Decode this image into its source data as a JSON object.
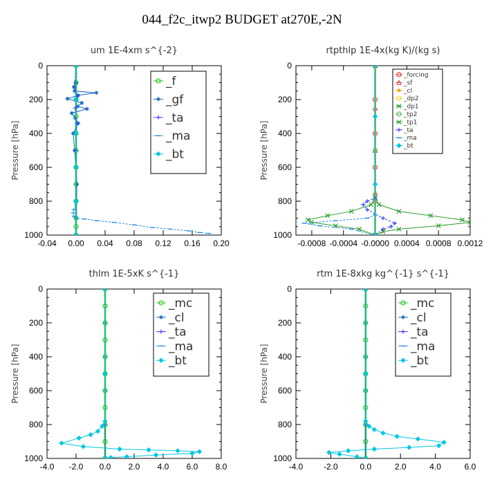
{
  "title": "044_f2c_itwp2  BUDGET at270E,-2N",
  "chart_data": [
    {
      "type": "line",
      "title": "um   1E-4xm s^{-2}",
      "ylabel": "Pressure [hPa]",
      "xlim": [
        -0.04,
        0.2
      ],
      "ylim": [
        1000,
        0
      ],
      "xticks": [
        "-0.04",
        "0.00",
        "0.04",
        "0.08",
        "0.12",
        "0.16",
        "0.20"
      ],
      "yticks": [
        "0",
        "200",
        "400",
        "600",
        "800",
        "1000"
      ],
      "legend_size": "large",
      "series": [
        {
          "name": "_f",
          "color": "#22c522",
          "marker": "circle",
          "x": [
            0,
            0,
            0,
            0,
            0,
            0,
            0,
            0,
            0,
            0,
            0,
            0
          ],
          "y": [
            0,
            100,
            200,
            300,
            400,
            500,
            600,
            700,
            800,
            900,
            950,
            1000
          ]
        },
        {
          "name": "_gf",
          "color": "#1565c0",
          "marker": "star",
          "x": [
            0,
            -0.003,
            -0.002,
            0.028,
            0.003,
            -0.012,
            0.008,
            0.002,
            0.015,
            -0.006,
            -0.001,
            0.003,
            -0.004,
            -0.002,
            0,
            0.001,
            0
          ],
          "y": [
            100,
            125,
            150,
            160,
            175,
            195,
            220,
            240,
            255,
            280,
            310,
            340,
            400,
            500,
            600,
            700,
            1000
          ]
        },
        {
          "name": "_ta",
          "color": "#3b3bff",
          "marker": "plus",
          "x": [
            0,
            -0.002,
            0.002,
            -0.001,
            0.001,
            0,
            0
          ],
          "y": [
            0,
            130,
            180,
            250,
            340,
            500,
            1000
          ]
        },
        {
          "name": "_ma",
          "color": "#1e88e5",
          "marker": "dash",
          "x": [
            0,
            0,
            0,
            -0.003,
            -0.004,
            -0.003,
            0,
            0.012,
            0.028,
            0.052,
            0.08,
            0.105,
            0.13,
            0.155,
            0.17,
            0.183
          ],
          "y": [
            0,
            400,
            800,
            850,
            870,
            890,
            900,
            905,
            915,
            925,
            940,
            955,
            965,
            975,
            985,
            990
          ]
        },
        {
          "name": "_bt",
          "color": "#00c8e0",
          "marker": "diamond",
          "x": [
            0,
            0,
            0,
            0,
            0,
            0
          ],
          "y": [
            0,
            200,
            400,
            600,
            800,
            1000
          ]
        }
      ]
    },
    {
      "type": "line",
      "title": "rtpthlp   1E-4x(kg K)/(kg s)",
      "ylabel": "Pressure [hPa]",
      "xlim": [
        -0.001,
        0.0012
      ],
      "ylim": [
        1000,
        0
      ],
      "xticks": [
        "-0.0008",
        "-0.0004",
        "-0.0000",
        "0.0004",
        "0.0008",
        "0.0012"
      ],
      "xtick_values": [
        -0.0008,
        -0.0004,
        0.0,
        0.0004,
        0.0008,
        0.0012
      ],
      "yticks": [
        "0",
        "200",
        "400",
        "600",
        "800",
        "1000"
      ],
      "legend_size": "small",
      "series": [
        {
          "name": "_forcing",
          "color": "#e53935",
          "marker": "circle",
          "x": [
            0,
            0,
            0,
            0,
            0,
            0
          ],
          "y": [
            0,
            200,
            400,
            600,
            800,
            1000
          ]
        },
        {
          "name": "_sf",
          "color": "#e53935",
          "marker": "triangle",
          "x": [
            0,
            0,
            0,
            0,
            0
          ],
          "y": [
            0,
            250,
            500,
            750,
            1000
          ]
        },
        {
          "name": "_cl",
          "color": "#ff9800",
          "marker": "star",
          "x": [
            0,
            0,
            0,
            0
          ],
          "y": [
            0,
            300,
            700,
            1000
          ]
        },
        {
          "name": "_dp2",
          "color": "#fdd835",
          "marker": "circle",
          "x": [
            0,
            0,
            0
          ],
          "y": [
            0,
            500,
            1000
          ]
        },
        {
          "name": "_dp1",
          "color": "#2e9e2e",
          "marker": "cross",
          "x": [
            0,
            0,
            5e-05,
            0.0003,
            0.0007,
            0.0011,
            0.0012,
            0.0008,
            0.0003,
            0.0001,
            0
          ],
          "y": [
            0,
            780,
            820,
            860,
            885,
            910,
            925,
            945,
            965,
            980,
            1000
          ]
        },
        {
          "name": "_tp2",
          "color": "#66bb6a",
          "marker": "circle",
          "x": [
            0,
            0,
            0
          ],
          "y": [
            0,
            500,
            1000
          ]
        },
        {
          "name": "_tp1",
          "color": "#2e9e2e",
          "marker": "cross",
          "x": [
            0,
            0,
            -5e-05,
            -0.0003,
            -0.0006,
            -0.00085,
            -0.0008,
            -0.0005,
            -0.0002,
            0
          ],
          "y": [
            0,
            780,
            820,
            860,
            885,
            910,
            925,
            945,
            965,
            1000
          ]
        },
        {
          "name": "_ta",
          "color": "#3b3bff",
          "marker": "plus",
          "x": [
            0,
            0,
            -0.0001,
            -0.00015,
            -0.0001,
            0.0001,
            0.00025,
            0.0002,
            0.0001,
            0
          ],
          "y": [
            0,
            780,
            800,
            820,
            850,
            900,
            930,
            950,
            965,
            1000
          ]
        },
        {
          "name": "_ma",
          "color": "#1e88e5",
          "marker": "dash",
          "x": [
            0,
            0,
            -0.0001,
            -0.0005,
            -0.0009,
            -0.0007,
            -0.0003,
            0
          ],
          "y": [
            0,
            880,
            900,
            915,
            930,
            945,
            965,
            1000
          ]
        },
        {
          "name": "_bt",
          "color": "#00c8e0",
          "marker": "diamond",
          "x": [
            0,
            0,
            0,
            0
          ],
          "y": [
            0,
            300,
            700,
            1000
          ]
        }
      ]
    },
    {
      "type": "line",
      "title": "thlm   1E-5xK s^{-1}",
      "ylabel": "Pressure [hPa]",
      "xlim": [
        -4.0,
        8.0
      ],
      "ylim": [
        1000,
        0
      ],
      "xticks": [
        "-4.0",
        "-2.0",
        "0.0",
        "2.0",
        "4.0",
        "6.0",
        "8.0"
      ],
      "yticks": [
        "0",
        "200",
        "400",
        "600",
        "800",
        "1000"
      ],
      "legend_size": "large",
      "series": [
        {
          "name": "_mc",
          "color": "#22c522",
          "marker": "circle",
          "x": [
            0,
            0,
            0,
            0,
            0,
            0,
            0,
            0,
            0,
            0,
            0
          ],
          "y": [
            0,
            100,
            200,
            300,
            400,
            500,
            600,
            700,
            800,
            900,
            1000
          ]
        },
        {
          "name": "_cl",
          "color": "#1565c0",
          "marker": "star",
          "x": [
            0,
            0,
            0
          ],
          "y": [
            0,
            500,
            1000
          ]
        },
        {
          "name": "_ta",
          "color": "#3b3bff",
          "marker": "plus",
          "x": [
            0,
            0,
            0
          ],
          "y": [
            0,
            500,
            1000
          ]
        },
        {
          "name": "_ma",
          "color": "#1e88e5",
          "marker": "dash",
          "x": [
            0,
            0,
            0,
            0,
            0,
            0
          ],
          "y": [
            0,
            200,
            400,
            600,
            800,
            1000
          ]
        },
        {
          "name": "_bt",
          "color": "#00c8e0",
          "marker": "diamond",
          "x": [
            0,
            0,
            0,
            -0.2,
            -0.5,
            -1.0,
            -1.8,
            -3.0,
            -1.5,
            1.0,
            3.0,
            5.0,
            6.5,
            6.0,
            3.5,
            1.5,
            0.4,
            0
          ],
          "y": [
            0,
            500,
            780,
            810,
            840,
            860,
            880,
            910,
            930,
            945,
            950,
            955,
            960,
            970,
            980,
            990,
            995,
            1000
          ]
        }
      ]
    },
    {
      "type": "line",
      "title": "rtm   1E-8xkg kg^{-1} s^{-1}",
      "ylabel": "Pressure [hPa]",
      "xlim": [
        -4.0,
        6.0
      ],
      "ylim": [
        1000,
        0
      ],
      "xticks": [
        "-4.0",
        "-2.0",
        "0.0",
        "2.0",
        "4.0",
        "6.0"
      ],
      "yticks": [
        "0",
        "200",
        "400",
        "600",
        "800",
        "1000"
      ],
      "legend_size": "large",
      "series": [
        {
          "name": "_mc",
          "color": "#22c522",
          "marker": "circle",
          "x": [
            0,
            0,
            0,
            0,
            0,
            0,
            0,
            0,
            0,
            0,
            0
          ],
          "y": [
            0,
            100,
            200,
            300,
            400,
            500,
            600,
            700,
            800,
            900,
            1000
          ]
        },
        {
          "name": "_cl",
          "color": "#1565c0",
          "marker": "star",
          "x": [
            0,
            0,
            0
          ],
          "y": [
            0,
            500,
            1000
          ]
        },
        {
          "name": "_ta",
          "color": "#3b3bff",
          "marker": "plus",
          "x": [
            0,
            0,
            0
          ],
          "y": [
            0,
            500,
            1000
          ]
        },
        {
          "name": "_ma",
          "color": "#1e88e5",
          "marker": "dash",
          "x": [
            0,
            0,
            0,
            0,
            0,
            0
          ],
          "y": [
            0,
            200,
            400,
            600,
            800,
            1000
          ]
        },
        {
          "name": "_bt",
          "color": "#00c8e0",
          "marker": "diamond",
          "x": [
            0,
            0,
            0,
            0.2,
            0.5,
            1.0,
            1.8,
            3.0,
            4.5,
            4.2,
            2.5,
            0.5,
            -1.0,
            -2.1,
            -1.5,
            -0.5,
            0
          ],
          "y": [
            0,
            500,
            780,
            810,
            830,
            850,
            870,
            885,
            905,
            925,
            935,
            945,
            955,
            965,
            975,
            990,
            1000
          ]
        }
      ]
    }
  ]
}
